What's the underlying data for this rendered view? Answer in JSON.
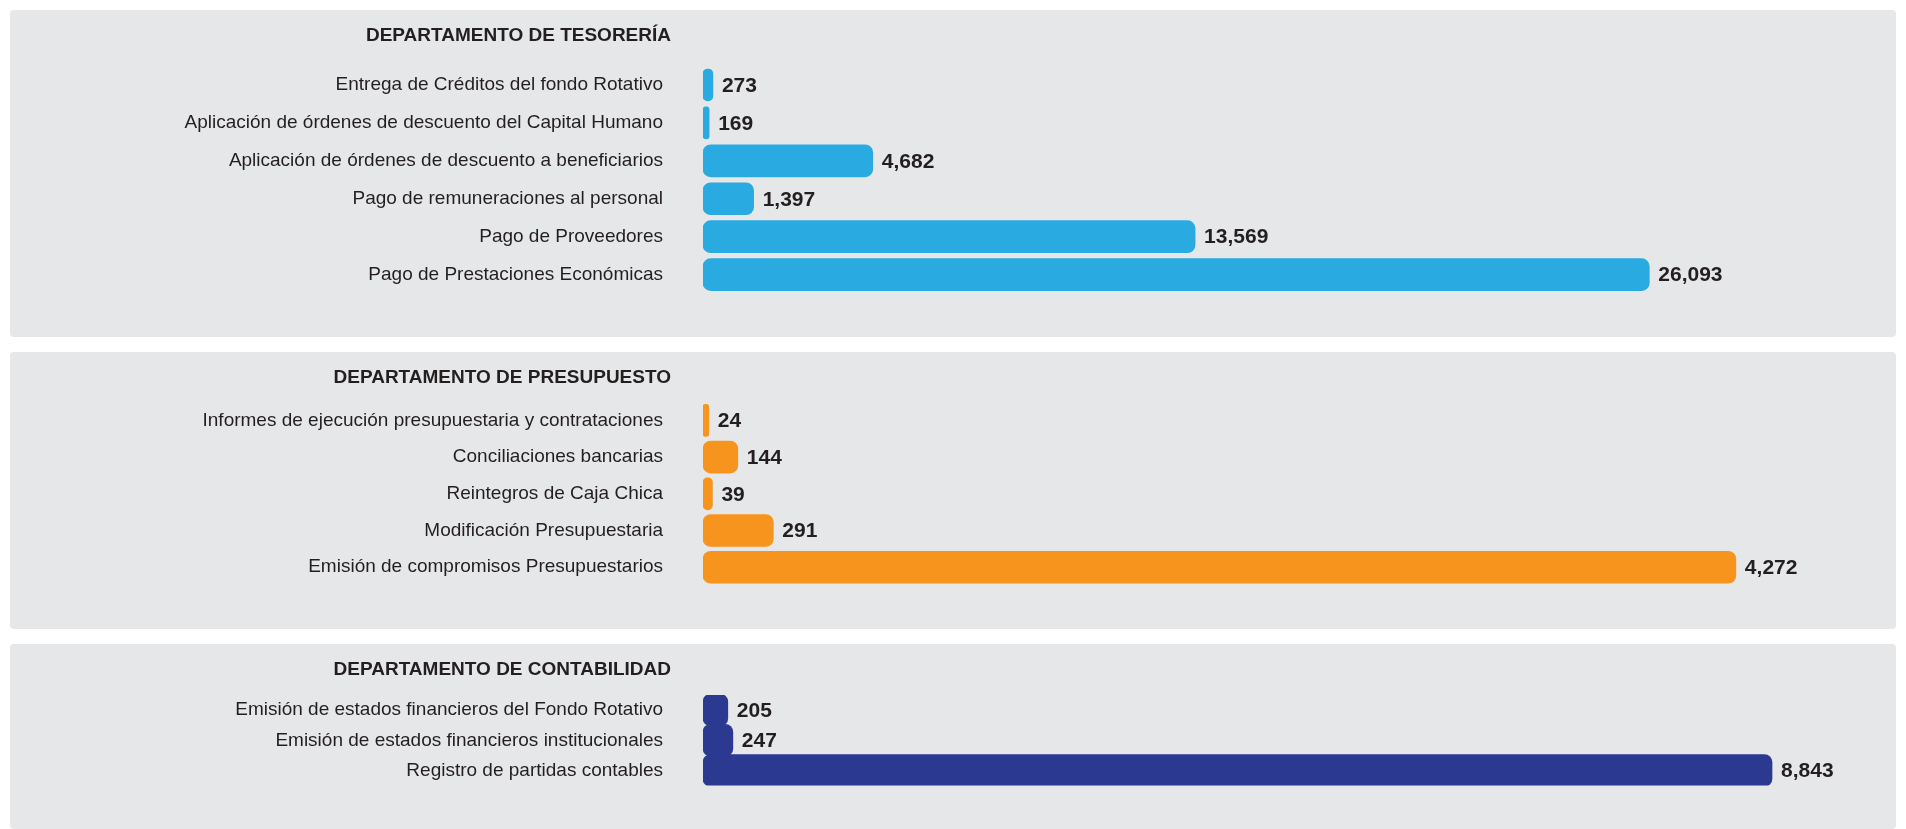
{
  "chart_data": [
    {
      "type": "bar",
      "orientation": "horizontal",
      "title": "DEPARTAMENTO DE TESORERÍA",
      "categories": [
        "Entrega de Créditos del fondo Rotativo",
        "Aplicación de órdenes de descuento del Capital Humano",
        "Aplicación de órdenes de descuento a beneficiarios",
        "Pago de remuneraciones al personal",
        "Pago de Proveedores",
        "Pago de Prestaciones Económicas"
      ],
      "values": [
        273,
        169,
        4682,
        1397,
        13569,
        26093
      ],
      "value_labels": [
        "273",
        "169",
        "4,682",
        "1,397",
        "13,569",
        "26,093"
      ],
      "color": "#29abe2",
      "tick_labels": "y",
      "grid": false,
      "legend": false
    },
    {
      "type": "bar",
      "orientation": "horizontal",
      "title": "DEPARTAMENTO DE PRESUPUESTO",
      "categories": [
        "Informes de ejecución presupuestaria y contrataciones",
        "Conciliaciones bancarias",
        "Reintegros de Caja Chica",
        "Modificación Presupuestaria",
        "Emisión de compromisos Presupuestarios"
      ],
      "values": [
        24,
        144,
        39,
        291,
        4272
      ],
      "value_labels": [
        "24",
        "144",
        "39",
        "291",
        "4,272"
      ],
      "color": "#f7941d",
      "tick_labels": "y",
      "grid": false,
      "legend": false
    },
    {
      "type": "bar",
      "orientation": "horizontal",
      "title": "DEPARTAMENTO DE CONTABILIDAD",
      "categories": [
        "Emisión de estados financieros del Fondo Rotativo",
        "Emisión de estados financieros institucionales",
        "Registro de partidas contables"
      ],
      "values": [
        205,
        247,
        8843
      ],
      "value_labels": [
        "205",
        "247",
        "8,843"
      ],
      "color": "#2b3990",
      "tick_labels": "y",
      "grid": false,
      "legend": false
    }
  ]
}
